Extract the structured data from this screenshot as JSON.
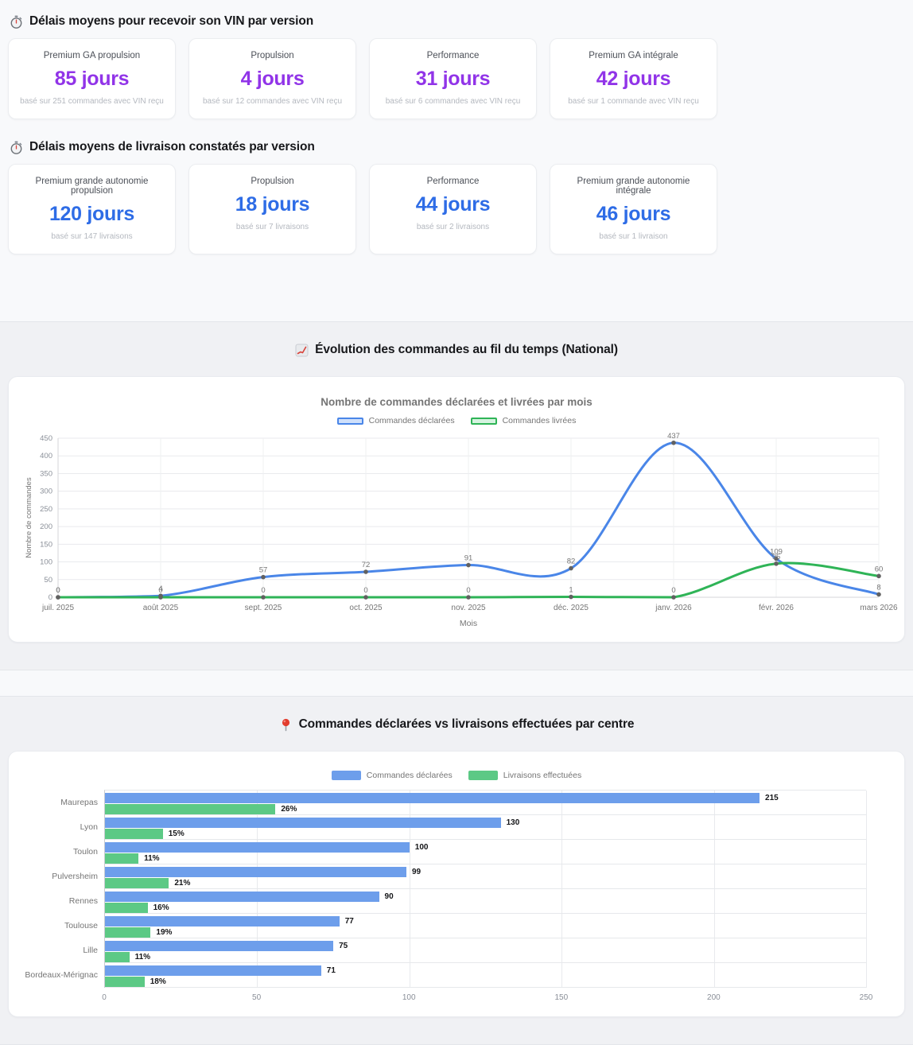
{
  "sections": {
    "vin": {
      "icon": "stopwatch-icon",
      "title": "Délais moyens pour recevoir son VIN par version",
      "value_color": "#9134e8",
      "cards": [
        {
          "version": "Premium GA propulsion",
          "value": "85 jours",
          "basis": "basé sur 251 commandes avec VIN reçu"
        },
        {
          "version": "Propulsion",
          "value": "4 jours",
          "basis": "basé sur 12 commandes avec VIN reçu"
        },
        {
          "version": "Performance",
          "value": "31 jours",
          "basis": "basé sur 6 commandes avec VIN reçu"
        },
        {
          "version": "Premium GA intégrale",
          "value": "42 jours",
          "basis": "basé sur 1 commande avec VIN reçu"
        }
      ]
    },
    "livraison": {
      "icon": "stopwatch-icon",
      "title": "Délais moyens de livraison constatés par version",
      "value_color": "#2e6ce6",
      "cards": [
        {
          "version": "Premium grande autonomie propulsion",
          "value": "120 jours",
          "basis": "basé sur 147 livraisons"
        },
        {
          "version": "Propulsion",
          "value": "18 jours",
          "basis": "basé sur 7 livraisons"
        },
        {
          "version": "Performance",
          "value": "44 jours",
          "basis": "basé sur 2 livraisons"
        },
        {
          "version": "Premium grande autonomie intégrale",
          "value": "46 jours",
          "basis": "basé sur 1 livraison"
        }
      ]
    },
    "evolution": {
      "icon": "chart-increasing-icon",
      "title": "Évolution des commandes au fil du temps (National)"
    },
    "centres": {
      "icon": "round-pushpin-icon",
      "title": "Commandes déclarées vs livraisons effectuées par centre"
    }
  },
  "chart_data": [
    {
      "type": "line",
      "title": "Nombre de commandes déclarées et livrées par mois",
      "xlabel": "Mois",
      "ylabel": "Nombre de commandes",
      "x": [
        "juil. 2025",
        "août 2025",
        "sept. 2025",
        "oct. 2025",
        "nov. 2025",
        "déc. 2025",
        "janv. 2026",
        "févr. 2026",
        "mars 2026"
      ],
      "ylim": [
        0,
        450
      ],
      "yticks": [
        0,
        50,
        100,
        150,
        200,
        250,
        300,
        350,
        400,
        450
      ],
      "grid": true,
      "legend_position": "top",
      "point_label_color": "#757575",
      "series": [
        {
          "name": "Commandes déclarées",
          "color": "#4a86e8",
          "legend_fill": "#cfe0fb",
          "values": [
            0,
            4,
            57,
            72,
            91,
            82,
            437,
            109,
            8
          ]
        },
        {
          "name": "Commandes livrées",
          "color": "#2fb457",
          "legend_fill": "#d6f3e0",
          "values": [
            0,
            0,
            0,
            0,
            0,
            1,
            0,
            95,
            60
          ]
        }
      ]
    },
    {
      "type": "bar",
      "orientation": "horizontal",
      "categories": [
        "Maurepas",
        "Lyon",
        "Toulon",
        "Pulversheim",
        "Rennes",
        "Toulouse",
        "Lille",
        "Bordeaux-Mérignac"
      ],
      "xlim": [
        0,
        250
      ],
      "xticks": [
        0,
        50,
        100,
        150,
        200,
        250
      ],
      "grid": true,
      "legend_position": "top",
      "series": [
        {
          "name": "Commandes déclarées",
          "color": "#6d9eeb",
          "values": [
            215,
            130,
            100,
            99,
            90,
            77,
            75,
            71
          ],
          "labels": [
            "215",
            "130",
            "100",
            "99",
            "90",
            "77",
            "75",
            "71"
          ]
        },
        {
          "name": "Livraisons effectuées",
          "color": "#5cc985",
          "values": [
            56,
            19,
            11,
            21,
            14,
            15,
            8,
            13
          ],
          "labels": [
            "26%",
            "15%",
            "11%",
            "21%",
            "16%",
            "19%",
            "11%",
            "18%"
          ]
        }
      ]
    }
  ]
}
